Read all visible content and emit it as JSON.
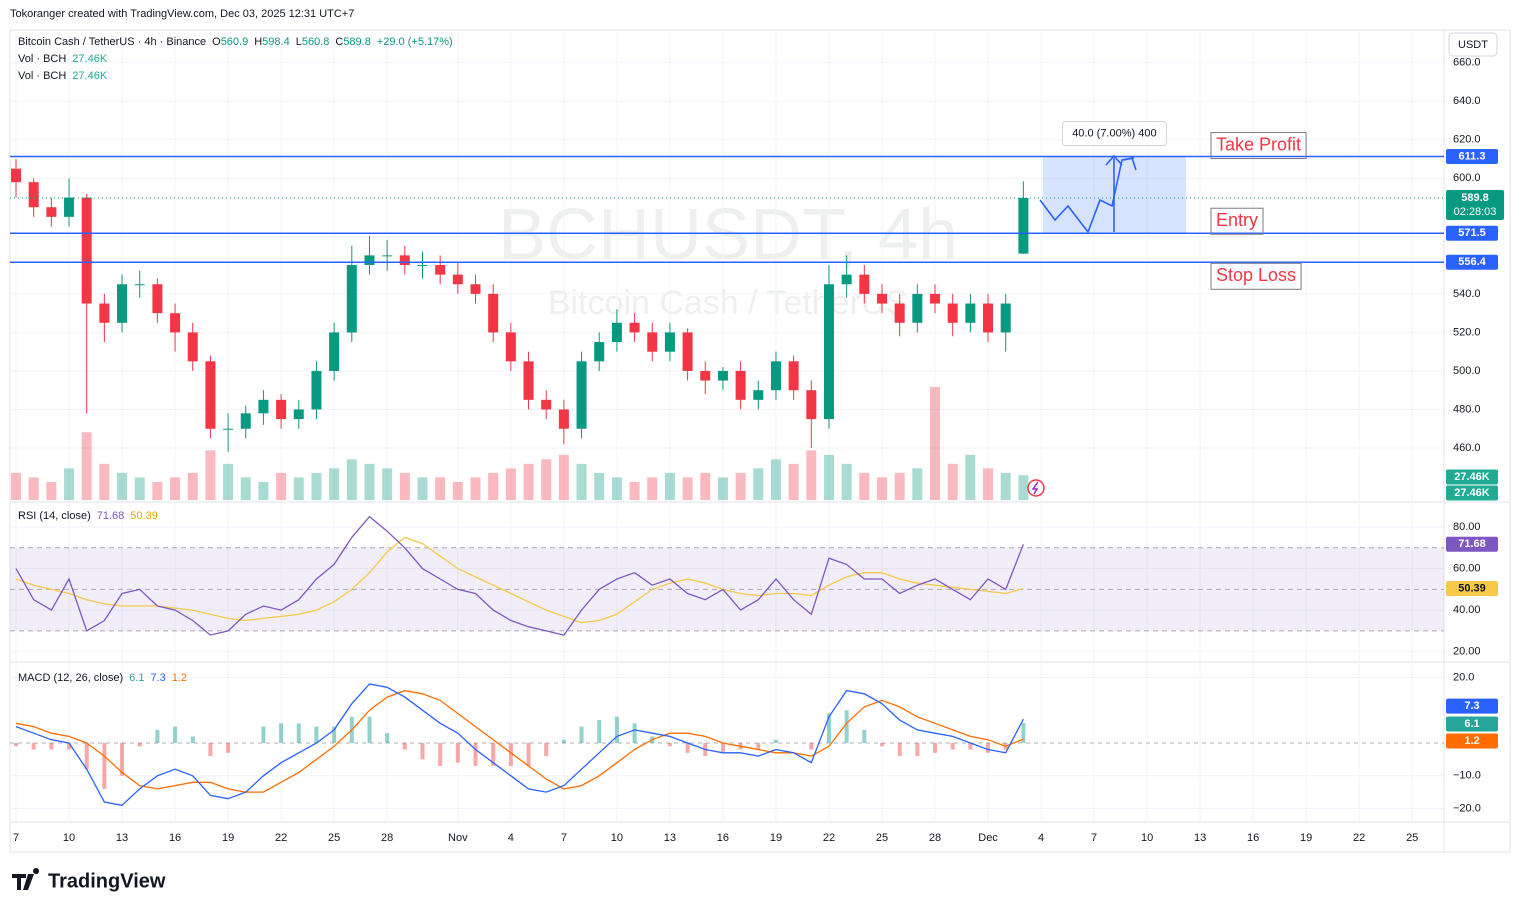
{
  "header": {
    "credit": "Tokoranger created with TradingView.com, Dec 03, 2025 12:31 UTC+7",
    "currency": "USDT",
    "logo": "TradingView"
  },
  "chart_data": [
    {
      "type": "candlestick",
      "title": "Bitcoin Cash / TetherUS · 4h · Binance",
      "watermark": "BCHUSDT, 4h",
      "watermark_subtitle": "Bitcoin Cash / TetherUS",
      "ohlc": [
        {
          "label": "O",
          "value": "560.9"
        },
        {
          "label": "H",
          "value": "598.4"
        },
        {
          "label": "L",
          "value": "560.8"
        },
        {
          "label": "C",
          "value": "589.8"
        }
      ],
      "change": "+29.0 (+5.17%)",
      "volume_legend": [
        {
          "name": "Vol · BCH",
          "value": "27.46K"
        },
        {
          "name": "Vol · BCH",
          "value": "27.46K"
        }
      ],
      "countdown": "02:28:03",
      "x": [
        0,
        1,
        2,
        3,
        4,
        5,
        6,
        7,
        8,
        9,
        10,
        11,
        12,
        13,
        14,
        15,
        16,
        17,
        18,
        19,
        20,
        21,
        22,
        23,
        24,
        25,
        26,
        27,
        28,
        29,
        30,
        31,
        32,
        33,
        34,
        35,
        36,
        37,
        38,
        39,
        40,
        41,
        42,
        43,
        44,
        45,
        46,
        47,
        48,
        49,
        50,
        51,
        52,
        53,
        54,
        55,
        56,
        57
      ],
      "open": [
        605,
        598,
        585,
        580,
        590,
        535,
        525,
        545,
        545,
        530,
        520,
        505,
        470,
        470,
        478,
        485,
        475,
        480,
        500,
        520,
        555,
        560,
        560,
        555,
        555,
        550,
        545,
        540,
        520,
        505,
        485,
        480,
        470,
        505,
        515,
        525,
        520,
        510,
        520,
        500,
        495,
        500,
        485,
        490,
        505,
        490,
        475,
        545,
        550,
        540,
        535,
        525,
        540,
        535,
        525,
        535,
        520,
        560.9
      ],
      "high": [
        610,
        600,
        590,
        600,
        592,
        540,
        550,
        552,
        548,
        535,
        525,
        508,
        478,
        482,
        490,
        488,
        485,
        505,
        525,
        565,
        570,
        568,
        565,
        562,
        560,
        556,
        550,
        545,
        525,
        510,
        490,
        485,
        510,
        520,
        532,
        530,
        525,
        525,
        522,
        505,
        502,
        505,
        495,
        510,
        508,
        495,
        555,
        560,
        555,
        545,
        540,
        545,
        545,
        540,
        540,
        540,
        540,
        598.4
      ],
      "low": [
        590,
        580,
        575,
        575,
        478,
        515,
        520,
        538,
        525,
        510,
        500,
        465,
        458,
        465,
        472,
        470,
        470,
        475,
        495,
        515,
        550,
        552,
        550,
        548,
        545,
        540,
        535,
        515,
        500,
        480,
        475,
        462,
        465,
        500,
        510,
        515,
        505,
        505,
        495,
        488,
        490,
        480,
        480,
        485,
        485,
        460,
        470,
        538,
        535,
        530,
        518,
        520,
        530,
        518,
        520,
        515,
        510,
        560.8
      ],
      "close": [
        598,
        585,
        580,
        590,
        535,
        525,
        545,
        545,
        530,
        520,
        505,
        470,
        470,
        478,
        485,
        475,
        480,
        500,
        520,
        555,
        560,
        560,
        555,
        555,
        550,
        545,
        540,
        520,
        505,
        485,
        480,
        470,
        505,
        515,
        525,
        520,
        510,
        520,
        500,
        495,
        500,
        485,
        490,
        505,
        490,
        475,
        545,
        550,
        540,
        535,
        525,
        540,
        535,
        525,
        535,
        520,
        535,
        589.8
      ],
      "volume": [
        30,
        25,
        20,
        35,
        75,
        40,
        30,
        25,
        20,
        25,
        30,
        55,
        40,
        25,
        20,
        30,
        25,
        30,
        35,
        45,
        40,
        35,
        30,
        25,
        25,
        20,
        25,
        30,
        35,
        40,
        45,
        50,
        40,
        30,
        25,
        20,
        25,
        30,
        25,
        30,
        25,
        30,
        35,
        45,
        40,
        55,
        50,
        40,
        30,
        25,
        30,
        35,
        125,
        40,
        50,
        35,
        30,
        27.46
      ],
      "up_color": "#089981",
      "down_color": "#f23645",
      "ylim": [
        433,
        677
      ],
      "vlim": [
        0,
        520
      ],
      "xlim": [
        -0.34,
        80.8
      ],
      "yticks": [
        {
          "value": 460,
          "label": "460.0"
        },
        {
          "value": 480,
          "label": "480.0"
        },
        {
          "value": 500,
          "label": "500.0"
        },
        {
          "value": 520,
          "label": "520.0"
        },
        {
          "value": 540,
          "label": "540.0"
        },
        {
          "value": 600,
          "label": "600.0"
        },
        {
          "value": 620,
          "label": "620.0"
        },
        {
          "value": 640,
          "label": "640.0"
        },
        {
          "value": 660,
          "label": "660.0"
        }
      ],
      "xticks": [
        {
          "value": 0,
          "label": "7"
        },
        {
          "value": 3,
          "label": "10"
        },
        {
          "value": 6,
          "label": "13"
        },
        {
          "value": 9,
          "label": "16"
        },
        {
          "value": 12,
          "label": "19"
        },
        {
          "value": 15,
          "label": "22"
        },
        {
          "value": 18,
          "label": "25"
        },
        {
          "value": 21,
          "label": "28"
        },
        {
          "value": 25,
          "label": "Nov"
        },
        {
          "value": 28,
          "label": "4"
        },
        {
          "value": 31,
          "label": "7"
        },
        {
          "value": 34,
          "label": "10"
        },
        {
          "value": 37,
          "label": "13"
        },
        {
          "value": 40,
          "label": "16"
        },
        {
          "value": 43,
          "label": "19"
        },
        {
          "value": 46,
          "label": "22"
        },
        {
          "value": 49,
          "label": "25"
        },
        {
          "value": 52,
          "label": "28"
        },
        {
          "value": 55,
          "label": "Dec"
        },
        {
          "value": 58,
          "label": "4"
        },
        {
          "value": 61,
          "label": "7"
        },
        {
          "value": 64,
          "label": "10"
        },
        {
          "value": 67,
          "label": "13"
        },
        {
          "value": 70,
          "label": "16"
        },
        {
          "value": 73,
          "label": "19"
        },
        {
          "value": 76,
          "label": "22"
        },
        {
          "value": 79,
          "label": "25"
        }
      ],
      "levels": [
        {
          "name": "Take Profit",
          "value": 611.3,
          "color": "#2962ff"
        },
        {
          "name": "Entry",
          "value": 571.5,
          "color": "#2962ff"
        },
        {
          "name": "Stop Loss",
          "value": 556.4,
          "color": "#2962ff"
        }
      ],
      "position": {
        "label": "40.0 (7.00%) 400",
        "from": 58.1,
        "to": 66.2,
        "top": 611.3,
        "bottom": 571.5
      }
    },
    {
      "type": "line",
      "title": "RSI (14, close)",
      "ylim": [
        16,
        90.6
      ],
      "band": [
        30,
        70
      ],
      "midline": 50,
      "yticks": [
        {
          "value": 20,
          "label": "20.00"
        },
        {
          "value": 40,
          "label": "40.00"
        },
        {
          "value": 60,
          "label": "60.00"
        },
        {
          "value": 80,
          "label": "80.00"
        }
      ],
      "series": [
        {
          "color": "#7e57c2",
          "values": [
            60,
            45,
            40,
            55,
            30,
            35,
            48,
            50,
            42,
            40,
            35,
            28,
            30,
            38,
            42,
            40,
            45,
            55,
            62,
            75,
            85,
            78,
            70,
            60,
            55,
            50,
            48,
            40,
            35,
            32,
            30,
            28,
            40,
            50,
            55,
            58,
            52,
            55,
            48,
            45,
            50,
            40,
            45,
            55,
            45,
            38,
            65,
            62,
            55,
            55,
            48,
            52,
            55,
            50,
            45,
            55,
            50,
            71.68
          ]
        },
        {
          "color": "#f7c948",
          "values": [
            55,
            52,
            50,
            48,
            45,
            43,
            42,
            42,
            42,
            41,
            40,
            38,
            36,
            35,
            36,
            37,
            38,
            40,
            44,
            50,
            58,
            68,
            75,
            72,
            66,
            60,
            56,
            52,
            48,
            44,
            40,
            37,
            34,
            35,
            38,
            44,
            50,
            53,
            55,
            53,
            50,
            48,
            47,
            48,
            48,
            47,
            52,
            56,
            58,
            58,
            55,
            53,
            52,
            51,
            50,
            49,
            48,
            50.39
          ]
        }
      ]
    },
    {
      "type": "macd",
      "title": "MACD (12, 26, close)",
      "ylim": [
        -23.5,
        23.8
      ],
      "yticks": [
        {
          "value": -20,
          "label": "−20.0"
        },
        {
          "value": -10,
          "label": "−10.0"
        },
        {
          "value": 20,
          "label": "20.0"
        }
      ],
      "series": [
        {
          "style": "histogram",
          "color": "#26a69a",
          "negative_color": "#ef5350",
          "values": [
            -1,
            -2,
            -2,
            -2,
            -8,
            -14,
            -10,
            -1,
            4,
            5,
            2,
            -4,
            -3,
            0,
            5,
            6,
            6,
            5,
            5,
            8,
            8,
            3,
            -2,
            -5,
            -7,
            -6,
            -7,
            -7,
            -7,
            -7,
            -4,
            1,
            5,
            7,
            8,
            6,
            2,
            -1,
            -3,
            -4,
            -3,
            -2,
            -2,
            1,
            0,
            -2,
            9,
            10,
            4,
            -1,
            -4,
            -4,
            -3,
            -2,
            -2,
            -3,
            -2,
            6.1
          ]
        },
        {
          "color": "#2962ff",
          "values": [
            5,
            3,
            1,
            0,
            -8,
            -18,
            -19,
            -14,
            -10,
            -8,
            -10,
            -16,
            -17,
            -15,
            -10,
            -6,
            -3,
            0,
            4,
            12,
            18,
            17,
            14,
            10,
            6,
            3,
            -2,
            -6,
            -10,
            -14,
            -15,
            -13,
            -8,
            -3,
            2,
            4,
            3,
            2,
            0,
            -2,
            -3,
            -3,
            -4,
            -2,
            -3,
            -6,
            8,
            16,
            15,
            12,
            7,
            4,
            3,
            2,
            0,
            -2,
            -3,
            7.3
          ]
        },
        {
          "color": "#ff6d00",
          "values": [
            6,
            5,
            3,
            2,
            0,
            -4,
            -9,
            -13,
            -14,
            -13,
            -12,
            -12,
            -14,
            -15,
            -15,
            -12,
            -9,
            -5,
            -1,
            4,
            10,
            14,
            16,
            15,
            13,
            9,
            5,
            1,
            -3,
            -7,
            -11,
            -14,
            -13,
            -10,
            -6,
            -2,
            1,
            3,
            3,
            2,
            0,
            -1,
            -2,
            -3,
            -3,
            -4,
            -1,
            6,
            11,
            13,
            11,
            8,
            6,
            4,
            2,
            1,
            -1,
            1.2
          ]
        }
      ]
    }
  ]
}
